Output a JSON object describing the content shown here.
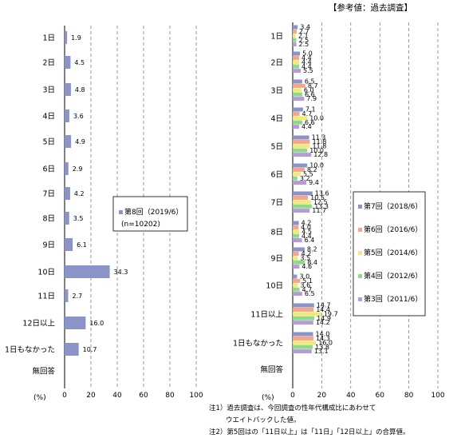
{
  "reference_label": "【参考値：過去調査】",
  "axis_percent_label": "(%)",
  "notes": [
    "注1）過去調査は、今回調査の性年代構成比にあわせて",
    "ウエイトバックした値。",
    "注2）第5回はの「11日以上」は「11日」「12日以上」の合算値。"
  ],
  "colors": {
    "s8": "#8b93c9",
    "s7": "#8b93c9",
    "s6": "#f4a58a",
    "s5": "#f2e97a",
    "s4": "#8fd98c",
    "s3": "#b79ad6"
  },
  "chart_data": [
    {
      "type": "bar",
      "orientation": "horizontal",
      "categories": [
        "1日",
        "2日",
        "3日",
        "4日",
        "5日",
        "6日",
        "7日",
        "8日",
        "9日",
        "10日",
        "11日",
        "12日以上",
        "1日もなかった",
        "無回答"
      ],
      "series": [
        {
          "name": "第8回（2019/6）",
          "extra": "(n=10202)",
          "color": "#8b93c9",
          "values": [
            1.9,
            4.5,
            4.8,
            3.6,
            4.9,
            2.9,
            4.2,
            3.5,
            6.1,
            34.3,
            2.7,
            16.0,
            10.7,
            null
          ],
          "labels": [
            "1.9",
            "4.5",
            "4.8",
            "3.6",
            "4.9",
            "2.9",
            "4.2",
            "3.5",
            "6.1",
            "34.3",
            "2.7",
            "16.0",
            "10.7",
            ""
          ]
        }
      ],
      "xlim": [
        0,
        100
      ],
      "xticks": [
        "0",
        "20",
        "40",
        "60",
        "80",
        "100"
      ],
      "grid": true,
      "legend_position": "middle-right"
    },
    {
      "type": "bar",
      "orientation": "horizontal",
      "categories": [
        "1日",
        "2日",
        "3日",
        "4日",
        "5日",
        "6日",
        "7日",
        "8日",
        "9日",
        "10日",
        "11日以上",
        "1日もなかった",
        "無回答"
      ],
      "series": [
        {
          "name": "第7回（2018/6）",
          "color": "#8b93c9",
          "values": [
            3.4,
            5.0,
            6.5,
            7.1,
            11.3,
            10.0,
            13.6,
            4.2,
            8.2,
            3.0,
            14.7,
            14.0,
            null
          ],
          "labels": [
            "3.4",
            "5.0",
            "6.5",
            "7.1",
            "11.3",
            "10.0",
            "13.6",
            "4.2",
            "8.2",
            "3.0",
            "14.7",
            "14.0",
            ""
          ]
        },
        {
          "name": "第6回（2016/6）",
          "color": "#f4a58a",
          "values": [
            2.7,
            4.4,
            8.7,
            4.7,
            11.8,
            8.2,
            10.5,
            4.0,
            4.2,
            5.1,
            14.4,
            14.3,
            null
          ],
          "labels": [
            "2.7",
            "4.4",
            "8.7",
            "4.7",
            "11.8",
            "8.2",
            "10.5",
            "4.0",
            "4.2",
            "5.1",
            "14.4",
            "14.3",
            ""
          ]
        },
        {
          "name": "第5回（2014/6）",
          "color": "#f2e97a",
          "values": [
            2.1,
            4.4,
            6.0,
            10.0,
            11.8,
            5.5,
            12.5,
            4.5,
            3.5,
            3.6,
            19.7,
            16.0,
            null
          ],
          "labels": [
            "2.1",
            "4.4",
            "6.0",
            "10.0",
            "11.8",
            "5.5",
            "12.5",
            "4.5",
            "3.5",
            "3.6",
            "19.7",
            "16.0",
            ""
          ]
        },
        {
          "name": "第4回（2012/6）",
          "color": "#8fd98c",
          "values": [
            2.5,
            4.4,
            6.6,
            6.6,
            10.0,
            3.2,
            13.3,
            4.4,
            8.4,
            4.7,
            14.9,
            13.8,
            null
          ],
          "labels": [
            "2.5",
            "4.4",
            "6.6",
            "6.6",
            "10.0",
            "3.2",
            "13.3",
            "4.4",
            "8.4",
            "4.7",
            "14.9",
            "13.8",
            ""
          ]
        },
        {
          "name": "第3回（2011/6）",
          "color": "#b79ad6",
          "values": [
            2.5,
            5.5,
            7.9,
            4.4,
            12.8,
            9.4,
            11.7,
            6.4,
            4.6,
            6.5,
            14.2,
            13.1,
            null
          ],
          "labels": [
            "2.5",
            "5.5",
            "7.9",
            "4.4",
            "12.8",
            "9.4",
            "11.7",
            "6.4",
            "4.6",
            "6.5",
            "14.2",
            "13.1",
            ""
          ]
        }
      ],
      "xlim": [
        0,
        100
      ],
      "xticks": [
        "0",
        "20",
        "40",
        "60",
        "80",
        "100"
      ],
      "grid": true,
      "legend_position": "right"
    }
  ]
}
